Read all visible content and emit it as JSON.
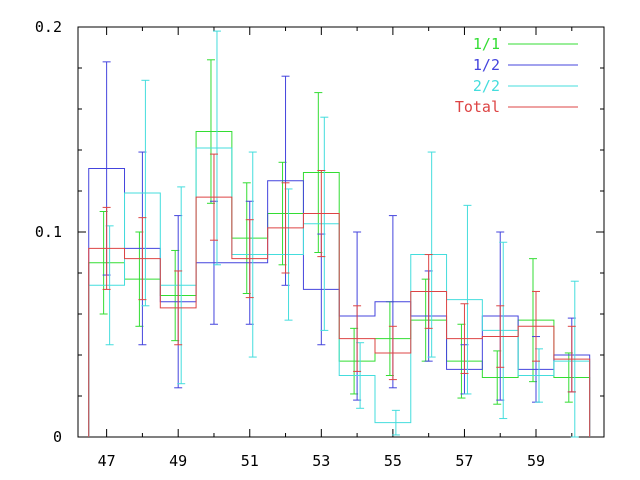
{
  "chart_data": {
    "type": "histogram",
    "xlim": [
      46.2,
      60.9
    ],
    "ylim": [
      0,
      0.2
    ],
    "bin_edges": [
      46.5,
      47.5,
      48.5,
      49.5,
      50.5,
      51.5,
      52.5,
      53.5,
      54.5,
      55.5,
      56.5,
      57.5,
      58.5,
      59.5,
      60.5
    ],
    "x_ticks": [
      47,
      49,
      51,
      53,
      55,
      57,
      59
    ],
    "x_tick_labels": [
      "47",
      "49",
      "51",
      "53",
      "55",
      "57",
      "59"
    ],
    "y_ticks": [
      0,
      0.1,
      0.2
    ],
    "y_tick_labels": [
      "0",
      "0.1",
      "0.2"
    ],
    "legend_position": "top-right",
    "series": [
      {
        "name": "1/1",
        "color": "#33dd33",
        "values": [
          0.085,
          0.077,
          0.069,
          0.149,
          0.097,
          0.109,
          0.129,
          0.037,
          0.048,
          0.057,
          0.037,
          0.029,
          0.057,
          0.029
        ],
        "errors": [
          0.025,
          0.023,
          0.022,
          0.035,
          0.027,
          0.025,
          0.039,
          0.016,
          0.018,
          0.02,
          0.018,
          0.013,
          0.03,
          0.012
        ]
      },
      {
        "name": "1/2",
        "color": "#4444dd",
        "values": [
          0.131,
          0.092,
          0.066,
          0.085,
          0.085,
          0.125,
          0.072,
          0.059,
          0.066,
          0.059,
          0.033,
          0.059,
          0.033,
          0.04
        ],
        "errors": [
          0.052,
          0.047,
          0.042,
          0.03,
          0.03,
          0.051,
          0.027,
          0.041,
          0.042,
          0.022,
          0.012,
          0.041,
          0.016,
          0.018
        ]
      },
      {
        "name": "2/2",
        "color": "#44dddd",
        "values": [
          0.074,
          0.119,
          0.074,
          0.141,
          0.089,
          0.089,
          0.104,
          0.03,
          0.007,
          0.089,
          0.067,
          0.052,
          0.03,
          0.037
        ],
        "errors": [
          0.029,
          0.055,
          0.048,
          0.057,
          0.05,
          0.032,
          0.052,
          0.016,
          0.006,
          0.05,
          0.046,
          0.043,
          0.013,
          0.039
        ]
      },
      {
        "name": "Total",
        "color": "#dd4444",
        "values": [
          0.092,
          0.087,
          0.063,
          0.117,
          0.087,
          0.102,
          0.109,
          0.048,
          0.041,
          0.071,
          0.048,
          0.049,
          0.054,
          0.038
        ],
        "errors": [
          0.02,
          0.02,
          0.018,
          0.021,
          0.019,
          0.022,
          0.021,
          0.016,
          0.013,
          0.018,
          0.017,
          0.015,
          0.017,
          0.016
        ]
      }
    ]
  }
}
